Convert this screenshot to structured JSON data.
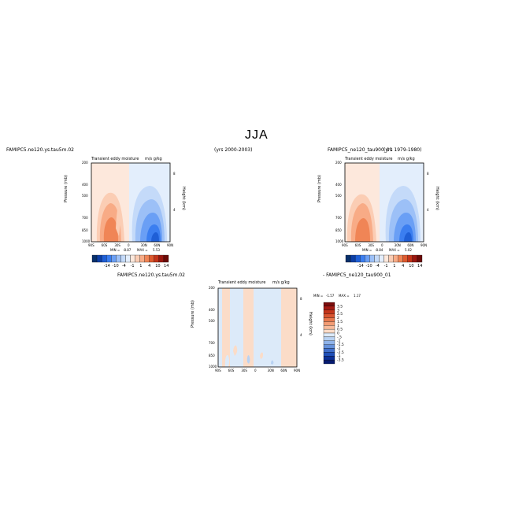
{
  "figure": {
    "season_title": "JJA",
    "panel1": {
      "case_left": "FAMIPC5.ne120.ys.tau5m.02",
      "years": "(yrs 2000-2003)",
      "title": "Transient eddy moisture",
      "units": "m/s g/kg",
      "min_label": "MIN =",
      "min": "-8.87",
      "max_label": "MAX =",
      "max": "5.53"
    },
    "panel2": {
      "case_left": "FAMIPC5_ne120_tau900_01",
      "years": "(yrs 1979-1980)",
      "title": "Transient eddy moisture",
      "units": "m/s g/kg",
      "min_label": "MIN =",
      "min": "-8.84",
      "max_label": "MAX =",
      "max": "5.02"
    },
    "panel3": {
      "case_left": "FAMIPC5.ne120.ys.tau5m.02",
      "case_right": "- FAMIPC5_ne120_tau900_01",
      "title": "Transient eddy moisture",
      "units": "m/s g/kg",
      "min_label": "MIN =",
      "min": "-1.57",
      "max_label": "MAX =",
      "max": "1.17"
    },
    "axes": {
      "ylabel": "Pressure (mb)",
      "ylabel_right": "Height (km)",
      "pressure_ticks": [
        "200",
        "400",
        "500",
        "700",
        "850",
        "1000"
      ],
      "height_ticks": [
        "8",
        "4"
      ],
      "lat_ticks_main": [
        "90S",
        "60S",
        "30S",
        "0",
        "30N",
        "60N",
        "90N"
      ],
      "lat_ticks_diff": [
        "90S",
        "60S",
        "30S",
        "0",
        "30N",
        "60N",
        "90N"
      ]
    },
    "colorbar_main": {
      "labels": [
        "-14",
        "-10",
        "-4",
        "-1",
        "1",
        "4",
        "10",
        "14"
      ],
      "colors": [
        "#08306b",
        "#0d3fa6",
        "#1f5fd6",
        "#3b7ef0",
        "#6a9ff5",
        "#9cc0f7",
        "#c4daf9",
        "#e3eefc",
        "#fde8dc",
        "#fbcdb4",
        "#f8ab86",
        "#f08556",
        "#de5a2f",
        "#c3341a",
        "#9a1710",
        "#6b0a08"
      ]
    },
    "colorbar_diff": {
      "labels": [
        "3.5",
        "3",
        "2.5",
        "2",
        "1.5",
        "1",
        "0.5",
        "0",
        "-.5",
        "-1",
        "-1.5",
        "-2",
        "-2.5",
        "-3",
        "-3.5"
      ],
      "colors": [
        "#7a0c0c",
        "#a41a14",
        "#c3341a",
        "#d95430",
        "#e8784e",
        "#f39c74",
        "#f8bb9b",
        "#fbdcc8",
        "#dceaf9",
        "#b8d2f3",
        "#8fb3ea",
        "#6692dc",
        "#3f6ecb",
        "#1f4fb8",
        "#0b2f96",
        "#051a70"
      ]
    }
  },
  "chart_data": [
    {
      "type": "heatmap",
      "title": "Transient eddy moisture",
      "units": "m/s g/kg",
      "xlabel": "",
      "ylabel": "Pressure (mb)",
      "x_ticks": [
        "90S",
        "60S",
        "30S",
        "0",
        "30N",
        "60N",
        "90N"
      ],
      "y_ticks": [
        "200",
        "400",
        "500",
        "700",
        "850",
        "1000"
      ],
      "min": -8.87,
      "max": 5.53
    },
    {
      "type": "heatmap",
      "title": "Transient eddy moisture",
      "units": "m/s g/kg",
      "xlabel": "",
      "ylabel": "Pressure (mb)",
      "x_ticks": [
        "90S",
        "60S",
        "30S",
        "0",
        "30N",
        "60N",
        "90N"
      ],
      "y_ticks": [
        "200",
        "400",
        "500",
        "700",
        "850",
        "1000"
      ],
      "min": -8.84,
      "max": 5.02
    },
    {
      "type": "heatmap",
      "title": "Transient eddy moisture",
      "units": "m/s g/kg",
      "xlabel": "",
      "ylabel": "Pressure (mb)",
      "x_ticks": [
        "90S",
        "60S",
        "30S",
        "0",
        "30N",
        "60N",
        "90N"
      ],
      "y_ticks": [
        "200",
        "400",
        "500",
        "700",
        "850",
        "1000"
      ],
      "min": -1.57,
      "max": 1.17
    }
  ]
}
